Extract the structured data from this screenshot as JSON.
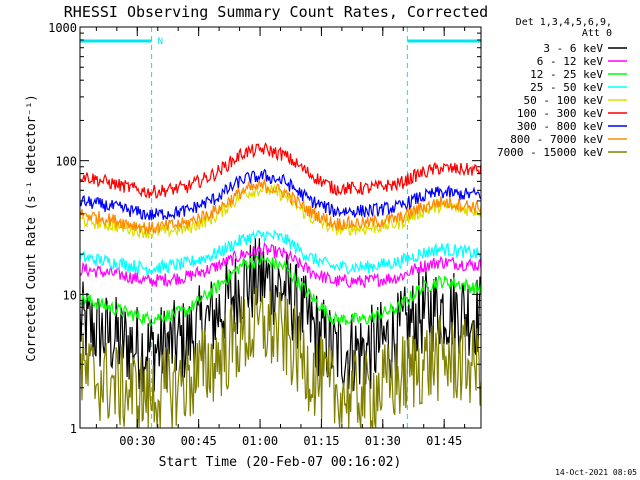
{
  "chart_data": {
    "type": "line",
    "title": "RHESSI Observing Summary Count Rates, Corrected",
    "xlabel": "Start Time (20-Feb-07 00:16:02)",
    "ylabel": "Corrected Count Rate (s⁻¹ detector⁻¹)",
    "yscale": "log",
    "ylim": [
      1,
      1000
    ],
    "xlim_minutes_from_start": [
      0,
      98
    ],
    "xticks": [
      {
        "label": "00:30",
        "minute": 14
      },
      {
        "label": "00:45",
        "minute": 29
      },
      {
        "label": "01:00",
        "minute": 44
      },
      {
        "label": "01:15",
        "minute": 59
      },
      {
        "label": "01:30",
        "minute": 74
      },
      {
        "label": "01:45",
        "minute": 89
      }
    ],
    "yticks": [
      {
        "label": "1",
        "value": 1
      },
      {
        "label": "10",
        "value": 10
      },
      {
        "label": "100",
        "value": 100
      },
      {
        "label": "1000",
        "value": 1000
      }
    ],
    "legend_header": [
      "Det 1,3,4,5,6,9,",
      "Att 0"
    ],
    "legend_placement": "right",
    "footer_timestamp": "14-Oct-2021 08:05",
    "flag_label": "N",
    "night_intervals_minutes": [
      [
        0,
        17.5
      ],
      [
        80,
        98
      ]
    ],
    "series": [
      {
        "name": "3 - 6 keV",
        "color": "#000000",
        "values": [
          [
            0,
            6
          ],
          [
            10,
            4.5
          ],
          [
            17,
            3.8
          ],
          [
            26,
            4.5
          ],
          [
            33,
            7
          ],
          [
            40,
            12
          ],
          [
            45,
            13
          ],
          [
            50,
            11
          ],
          [
            56,
            6
          ],
          [
            62,
            3.8
          ],
          [
            70,
            3.8
          ],
          [
            78,
            5
          ],
          [
            83,
            7
          ],
          [
            88,
            8
          ],
          [
            93,
            7.5
          ],
          [
            97,
            7
          ]
        ]
      },
      {
        "name": "6 - 12 keV",
        "color": "#ff00ff",
        "values": [
          [
            0,
            15.5
          ],
          [
            10,
            14
          ],
          [
            17,
            12.5
          ],
          [
            26,
            13.5
          ],
          [
            33,
            16
          ],
          [
            40,
            20
          ],
          [
            45,
            21.5
          ],
          [
            50,
            20
          ],
          [
            56,
            15
          ],
          [
            62,
            12.5
          ],
          [
            70,
            12.5
          ],
          [
            78,
            13.5
          ],
          [
            83,
            16
          ],
          [
            88,
            17.5
          ],
          [
            93,
            17
          ],
          [
            97,
            16.5
          ]
        ]
      },
      {
        "name": "12 - 25 keV",
        "color": "#00ff00",
        "values": [
          [
            0,
            9.5
          ],
          [
            10,
            7.5
          ],
          [
            17,
            6.5
          ],
          [
            26,
            7.5
          ],
          [
            33,
            11
          ],
          [
            40,
            17
          ],
          [
            45,
            18
          ],
          [
            50,
            16
          ],
          [
            56,
            10
          ],
          [
            62,
            6.5
          ],
          [
            70,
            6.5
          ],
          [
            78,
            8
          ],
          [
            83,
            11
          ],
          [
            88,
            12.5
          ],
          [
            93,
            12
          ],
          [
            97,
            11
          ]
        ]
      },
      {
        "name": "25 - 50 keV",
        "color": "#00ffff",
        "values": [
          [
            0,
            19
          ],
          [
            10,
            17
          ],
          [
            17,
            15.5
          ],
          [
            26,
            17
          ],
          [
            33,
            20
          ],
          [
            40,
            26
          ],
          [
            45,
            28
          ],
          [
            50,
            26
          ],
          [
            56,
            19
          ],
          [
            62,
            16
          ],
          [
            70,
            16
          ],
          [
            78,
            17.5
          ],
          [
            83,
            20
          ],
          [
            88,
            22
          ],
          [
            93,
            21
          ],
          [
            97,
            20
          ]
        ]
      },
      {
        "name": "50 - 100 keV",
        "color": "#dddd00",
        "values": [
          [
            0,
            36
          ],
          [
            10,
            32
          ],
          [
            17,
            29
          ],
          [
            26,
            31
          ],
          [
            33,
            38
          ],
          [
            40,
            57
          ],
          [
            45,
            62
          ],
          [
            50,
            55
          ],
          [
            56,
            38
          ],
          [
            62,
            31
          ],
          [
            70,
            31
          ],
          [
            78,
            34
          ],
          [
            83,
            41
          ],
          [
            88,
            46
          ],
          [
            93,
            44
          ],
          [
            97,
            42
          ]
        ]
      },
      {
        "name": "100 - 300 keV",
        "color": "#ff0000",
        "values": [
          [
            0,
            78
          ],
          [
            10,
            65
          ],
          [
            17,
            58
          ],
          [
            26,
            63
          ],
          [
            33,
            80
          ],
          [
            40,
            115
          ],
          [
            45,
            122
          ],
          [
            50,
            110
          ],
          [
            56,
            80
          ],
          [
            62,
            62
          ],
          [
            70,
            62
          ],
          [
            78,
            67
          ],
          [
            83,
            80
          ],
          [
            88,
            88
          ],
          [
            93,
            86
          ],
          [
            97,
            85
          ]
        ]
      },
      {
        "name": "300 - 800 keV",
        "color": "#0000ff",
        "values": [
          [
            0,
            50
          ],
          [
            10,
            44
          ],
          [
            17,
            39
          ],
          [
            26,
            42
          ],
          [
            33,
            52
          ],
          [
            40,
            73
          ],
          [
            45,
            77
          ],
          [
            50,
            70
          ],
          [
            56,
            51
          ],
          [
            62,
            42
          ],
          [
            70,
            42
          ],
          [
            78,
            45
          ],
          [
            83,
            53
          ],
          [
            88,
            58
          ],
          [
            93,
            56
          ],
          [
            97,
            56
          ]
        ]
      },
      {
        "name": "800 - 7000 keV",
        "color": "#ff8800",
        "values": [
          [
            0,
            40
          ],
          [
            10,
            35
          ],
          [
            17,
            31
          ],
          [
            26,
            34
          ],
          [
            33,
            42
          ],
          [
            40,
            60
          ],
          [
            45,
            65
          ],
          [
            50,
            58
          ],
          [
            56,
            42
          ],
          [
            62,
            34
          ],
          [
            70,
            34
          ],
          [
            78,
            37
          ],
          [
            83,
            44
          ],
          [
            88,
            49
          ],
          [
            93,
            47
          ],
          [
            97,
            45
          ]
        ]
      },
      {
        "name": "7000 - 15000 keV",
        "color": "#808000",
        "values": [
          [
            0,
            2.6
          ],
          [
            10,
            2.0
          ],
          [
            17,
            1.7
          ],
          [
            26,
            2.2
          ],
          [
            33,
            3.2
          ],
          [
            40,
            5
          ],
          [
            45,
            5.8
          ],
          [
            50,
            4.8
          ],
          [
            56,
            2.8
          ],
          [
            62,
            1.8
          ],
          [
            70,
            1.8
          ],
          [
            78,
            2.3
          ],
          [
            83,
            3
          ],
          [
            88,
            3.3
          ],
          [
            93,
            3.1
          ],
          [
            97,
            3
          ]
        ]
      }
    ]
  }
}
